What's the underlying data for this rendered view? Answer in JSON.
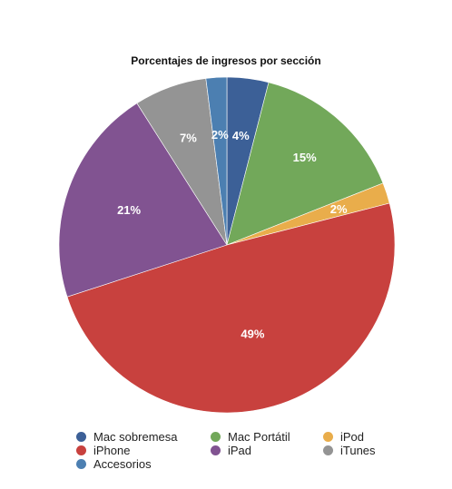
{
  "chart_data": {
    "type": "pie",
    "title": "Porcentajes de ingresos por sección",
    "legend_position": "bottom",
    "slices": [
      {
        "name": "Mac sobremesa",
        "value": 4,
        "label": "4%",
        "color": "#3c6097"
      },
      {
        "name": "Mac Portátil",
        "value": 15,
        "label": "15%",
        "color": "#72a85a"
      },
      {
        "name": "iPod",
        "value": 2,
        "label": "2%",
        "color": "#e9ad4b"
      },
      {
        "name": "iPhone",
        "value": 49,
        "label": "49%",
        "color": "#c8413e"
      },
      {
        "name": "iPad",
        "value": 21,
        "label": "21%",
        "color": "#815391"
      },
      {
        "name": "iTunes",
        "value": 7,
        "label": "7%",
        "color": "#949494"
      },
      {
        "name": "Accesorios",
        "value": 2,
        "label": "2%",
        "color": "#4c7fb1"
      }
    ]
  }
}
